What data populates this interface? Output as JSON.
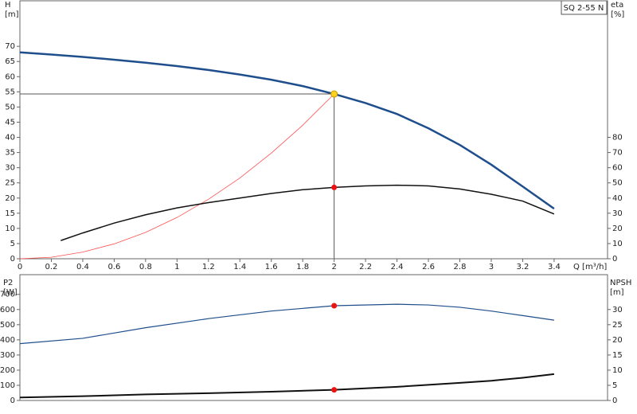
{
  "chart_data": [
    {
      "type": "line",
      "title": "SQ 2-55 N",
      "y_label": "H",
      "y_unit": "[m]",
      "y2_label": "eta",
      "y2_unit": "[%]",
      "x_label": "Q [m³/h]",
      "xlim": [
        0,
        3.74
      ],
      "xticks": [
        0,
        0.2,
        0.4,
        0.6,
        0.8,
        1.0,
        1.2,
        1.4,
        1.6,
        1.8,
        2.0,
        2.2,
        2.4,
        2.6,
        2.8,
        3.0,
        3.2,
        3.4
      ],
      "ylim": [
        0,
        85
      ],
      "yticks": [
        0,
        5,
        10,
        15,
        20,
        25,
        30,
        35,
        40,
        45,
        50,
        55,
        60,
        65,
        70
      ],
      "y2lim": [
        0,
        170
      ],
      "y2ticks": [
        0,
        10,
        20,
        30,
        40,
        50,
        60,
        70,
        80
      ],
      "series": [
        {
          "color": "#1f4e8c",
          "width": 2.5,
          "x": [
            0,
            0.2,
            0.4,
            0.6,
            0.8,
            1.0,
            1.2,
            1.4,
            1.6,
            1.8,
            2.0,
            2.2,
            2.4,
            2.6,
            2.8,
            3.0,
            3.2,
            3.4
          ],
          "values": [
            68,
            67.3,
            66.5,
            65.6,
            64.6,
            63.5,
            62.2,
            60.7,
            59,
            56.9,
            54.3,
            51.3,
            47.7,
            43,
            37.5,
            31,
            23.8,
            16.5
          ]
        },
        {
          "color": "#ff5050",
          "width": 0.8,
          "x": [
            0,
            0.2,
            0.4,
            0.6,
            0.8,
            1.0,
            1.2,
            1.4,
            1.6,
            1.8,
            2.0
          ],
          "values": [
            0,
            0.5,
            2.2,
            4.9,
            8.7,
            13.6,
            19.6,
            26.6,
            34.8,
            44,
            54.3
          ]
        },
        {
          "color": "#111111",
          "width": 1.5,
          "axis": "y2",
          "x": [
            0.26,
            0.4,
            0.6,
            0.8,
            1.0,
            1.2,
            1.4,
            1.6,
            1.8,
            2.0,
            2.2,
            2.4,
            2.6,
            2.8,
            3.0,
            3.2,
            3.4
          ],
          "values": [
            12,
            17,
            23.5,
            29,
            33.5,
            37,
            40,
            43,
            45.5,
            47,
            48,
            48.5,
            48,
            46,
            42.5,
            38,
            29.5
          ]
        }
      ],
      "markers": [
        {
          "x": 2.0,
          "y": 54.3,
          "color": "#ffd21f",
          "guide": true
        },
        {
          "x": 2.0,
          "y": 47,
          "axis": "y2",
          "color": "#ee1111"
        }
      ]
    },
    {
      "type": "line",
      "y_label": "P2",
      "y_unit": "[W]",
      "y2_label": "NPSH",
      "y2_unit": "[m]",
      "xlim": [
        0,
        3.74
      ],
      "ylim": [
        0,
        830
      ],
      "yticks": [
        0,
        100,
        200,
        300,
        400,
        500,
        600,
        700
      ],
      "y2lim": [
        0,
        41.5
      ],
      "y2ticks": [
        0,
        5,
        10,
        15,
        20,
        25,
        30
      ],
      "series": [
        {
          "color": "#1f4e8c",
          "width": 1.2,
          "x": [
            0,
            0.4,
            0.8,
            1.2,
            1.6,
            2.0,
            2.4,
            2.6,
            2.8,
            3.0,
            3.2,
            3.4
          ],
          "values": [
            375,
            410,
            480,
            540,
            590,
            625,
            635,
            630,
            615,
            590,
            560,
            530
          ]
        },
        {
          "color": "#111111",
          "width": 2,
          "axis": "y2",
          "x": [
            0,
            0.4,
            0.8,
            1.2,
            1.6,
            2.0,
            2.4,
            2.8,
            3.0,
            3.2,
            3.4
          ],
          "values": [
            1,
            1.4,
            2.0,
            2.4,
            2.9,
            3.5,
            4.5,
            5.8,
            6.5,
            7.5,
            8.7
          ]
        }
      ],
      "markers": [
        {
          "x": 2.0,
          "y": 625,
          "color": "#ee1111"
        },
        {
          "x": 2.0,
          "y": 3.5,
          "axis": "y2",
          "color": "#ee1111"
        }
      ]
    }
  ]
}
